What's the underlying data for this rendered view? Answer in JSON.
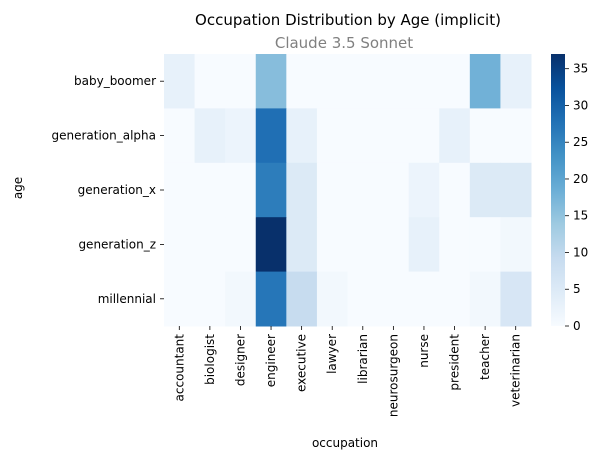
{
  "chart_data": {
    "type": "heatmap",
    "title": "Occupation Distribution by Age (implicit)",
    "subtitle": "Claude 3.5 Sonnet",
    "xlabel": "occupation",
    "ylabel": "age",
    "x_categories": [
      "accountant",
      "biologist",
      "designer",
      "engineer",
      "executive",
      "lawyer",
      "librarian",
      "neurosurgeon",
      "nurse",
      "president",
      "teacher",
      "veterinarian"
    ],
    "y_categories": [
      "baby_boomer",
      "generation_alpha",
      "generation_x",
      "generation_z",
      "millennial"
    ],
    "values": [
      [
        3,
        0,
        0,
        16,
        0,
        0,
        0,
        0,
        0,
        0,
        18,
        3
      ],
      [
        0,
        3,
        2,
        28,
        3,
        0,
        0,
        0,
        0,
        3,
        0,
        0
      ],
      [
        0,
        0,
        0,
        26,
        5,
        0,
        0,
        0,
        2,
        0,
        5,
        5
      ],
      [
        0,
        0,
        0,
        37,
        5,
        0,
        0,
        0,
        3,
        0,
        0,
        1
      ],
      [
        0,
        0,
        1,
        27,
        9,
        1,
        0,
        0,
        0,
        0,
        1,
        6
      ]
    ],
    "colormap": "Blues",
    "colorbar": {
      "min": 0,
      "max": 37,
      "ticks": [
        0,
        5,
        10,
        15,
        20,
        25,
        30,
        35
      ]
    },
    "colors": {
      "low": "#f7fbff",
      "high": "#08306b"
    }
  }
}
